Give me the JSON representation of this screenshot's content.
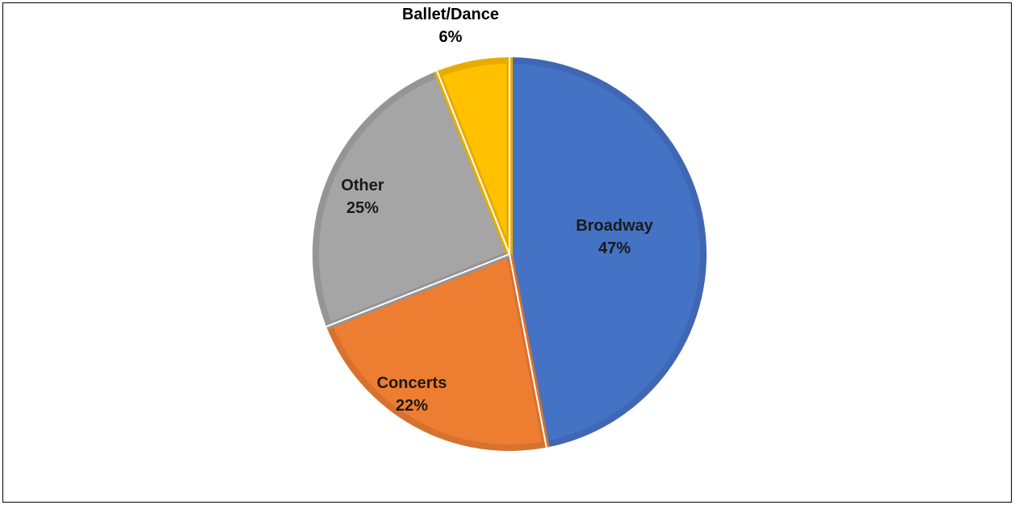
{
  "chart_data": {
    "type": "pie",
    "title": "",
    "slices": [
      {
        "label": "Broadway",
        "value": 47,
        "value_label": "47%",
        "color": "#4472C4",
        "edge": "#3F67B3"
      },
      {
        "label": "Concerts",
        "value": 22,
        "value_label": "22%",
        "color": "#ED7D31",
        "edge": "#D6722E"
      },
      {
        "label": "Other",
        "value": 25,
        "value_label": "25%",
        "color": "#A5A5A5",
        "edge": "#959595"
      },
      {
        "label": "Ballet/Dance",
        "value": 6,
        "value_label": "6%",
        "color": "#FFC000",
        "edge": "#E6AD00"
      }
    ],
    "start_angle_deg": 0,
    "direction": "clockwise",
    "legend": "none",
    "data_labels": "category and percent, bold"
  }
}
